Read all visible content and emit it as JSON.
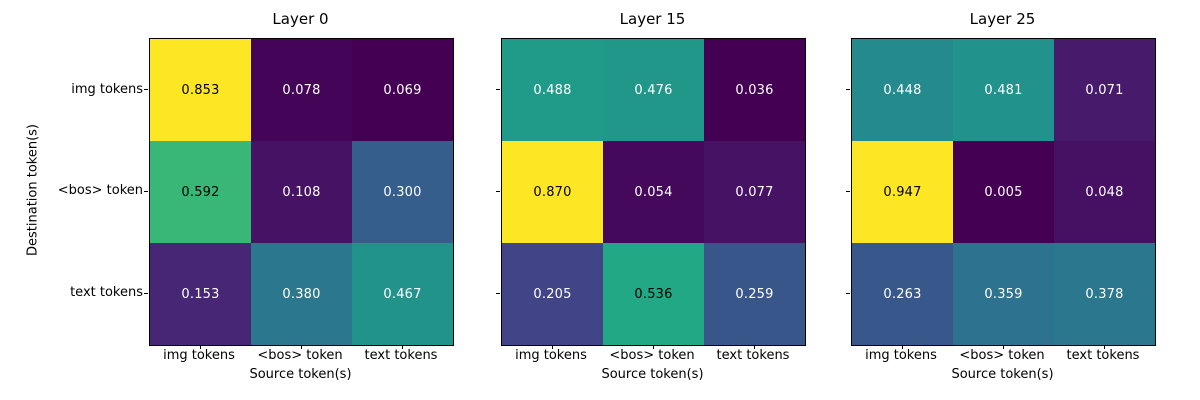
{
  "figure": {
    "background": "#ffffff",
    "colormap": "viridis",
    "normalization": "per-panel-minmax",
    "cell_text_color_high": "#000000",
    "cell_text_color_low": "#ffffff",
    "text_color_threshold": 0.58,
    "viridis_anchors": [
      "#440154",
      "#482475",
      "#414487",
      "#355f8d",
      "#2a788e",
      "#21918c",
      "#22a884",
      "#44bf70",
      "#7ad151",
      "#bddf26",
      "#fde725"
    ]
  },
  "chart_data": [
    {
      "type": "heatmap",
      "title": "Layer 0",
      "xlabel": "Source token(s)",
      "ylabel": "Destination token(s)",
      "x_categories": [
        "img tokens",
        "<bos> token",
        "text tokens"
      ],
      "y_categories": [
        "img tokens",
        "<bos> token",
        "text tokens"
      ],
      "values": [
        [
          0.853,
          0.078,
          0.069
        ],
        [
          0.592,
          0.108,
          0.3
        ],
        [
          0.153,
          0.38,
          0.467
        ]
      ],
      "value_decimals": 3
    },
    {
      "type": "heatmap",
      "title": "Layer 15",
      "xlabel": "Source token(s)",
      "x_categories": [
        "img tokens",
        "<bos> token",
        "text tokens"
      ],
      "y_categories": [
        "img tokens",
        "<bos> token",
        "text tokens"
      ],
      "values": [
        [
          0.488,
          0.476,
          0.036
        ],
        [
          0.87,
          0.054,
          0.077
        ],
        [
          0.205,
          0.536,
          0.259
        ]
      ],
      "value_decimals": 3
    },
    {
      "type": "heatmap",
      "title": "Layer 25",
      "xlabel": "Source token(s)",
      "x_categories": [
        "img tokens",
        "<bos> token",
        "text tokens"
      ],
      "y_categories": [
        "img tokens",
        "<bos> token",
        "text tokens"
      ],
      "values": [
        [
          0.448,
          0.481,
          0.071
        ],
        [
          0.947,
          0.005,
          0.048
        ],
        [
          0.263,
          0.359,
          0.378
        ]
      ],
      "value_decimals": 3
    }
  ]
}
